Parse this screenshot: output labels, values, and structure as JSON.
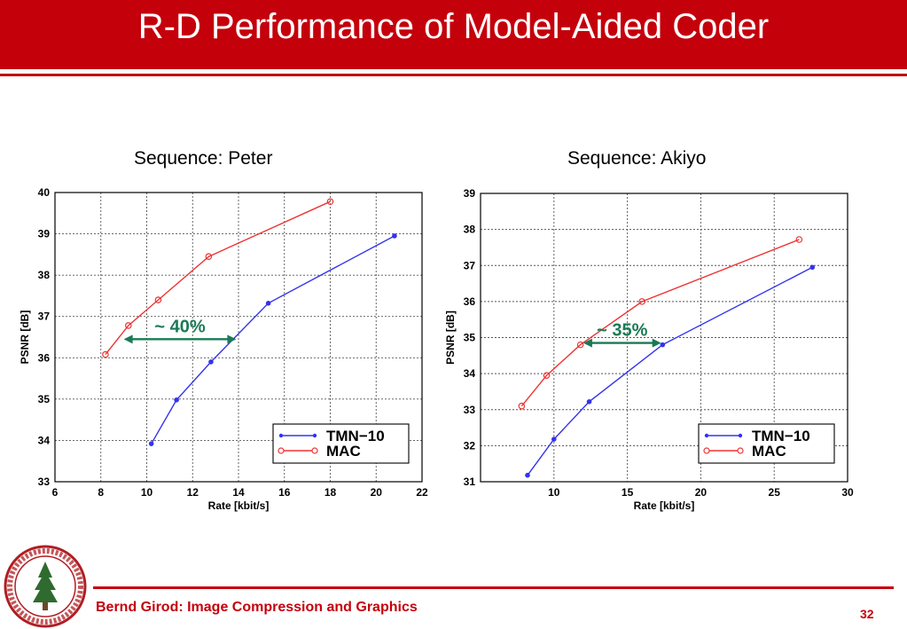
{
  "slide": {
    "title": "R-D Performance of Model-Aided Coder",
    "footer": "Bernd Girod: Image Compression and Graphics",
    "page_number": "32",
    "accent_color": "#c4000b",
    "seal_text": "LELAND STANFORD JUNIOR UNIVERSITY • ORGANIZED 1891"
  },
  "chart_data": [
    {
      "type": "line",
      "title": "Sequence: Peter",
      "xlabel": "Rate [kbit/s]",
      "ylabel": "PSNR [dB]",
      "xlim": [
        6,
        22
      ],
      "ylim": [
        33,
        40
      ],
      "xticks": [
        6,
        8,
        10,
        12,
        14,
        16,
        18,
        20,
        22
      ],
      "yticks": [
        33,
        34,
        35,
        36,
        37,
        38,
        39,
        40
      ],
      "grid": true,
      "legend_position": "bottom-right",
      "series": [
        {
          "name": "TMN−10",
          "color": "#3333ee",
          "marker": "dot",
          "x": [
            10.2,
            11.3,
            12.8,
            15.3,
            20.8
          ],
          "y": [
            33.92,
            34.98,
            35.9,
            37.32,
            38.95
          ]
        },
        {
          "name": "MAC",
          "color": "#ee3333",
          "marker": "circle",
          "x": [
            8.2,
            9.2,
            10.5,
            12.7,
            18.0
          ],
          "y": [
            36.08,
            36.78,
            37.4,
            38.45,
            39.78
          ]
        }
      ],
      "annotation": {
        "text": "~ 40%",
        "color": "#1a7a55",
        "y": 36.45,
        "x_from": 9.0,
        "x_to": 13.9
      }
    },
    {
      "type": "line",
      "title": "Sequence: Akiyo",
      "xlabel": "Rate [kbit/s]",
      "ylabel": "PSNR [dB]",
      "xlim": [
        5,
        30
      ],
      "ylim": [
        31,
        39
      ],
      "xticks": [
        10,
        15,
        20,
        25,
        30
      ],
      "yticks": [
        31,
        32,
        33,
        34,
        35,
        36,
        37,
        38,
        39
      ],
      "grid": true,
      "legend_position": "bottom-right",
      "series": [
        {
          "name": "TMN−10",
          "color": "#3333ee",
          "marker": "dot",
          "x": [
            8.2,
            10.0,
            12.4,
            17.4,
            27.6
          ],
          "y": [
            31.18,
            32.18,
            33.22,
            34.8,
            36.95
          ]
        },
        {
          "name": "MAC",
          "color": "#ee3333",
          "marker": "circle",
          "x": [
            7.8,
            9.5,
            11.8,
            16.0,
            26.7
          ],
          "y": [
            33.1,
            33.95,
            34.8,
            36.0,
            37.72
          ]
        }
      ],
      "annotation": {
        "text": "~ 35%",
        "color": "#1a7a55",
        "y": 34.85,
        "x_from": 12.0,
        "x_to": 17.3
      }
    }
  ]
}
